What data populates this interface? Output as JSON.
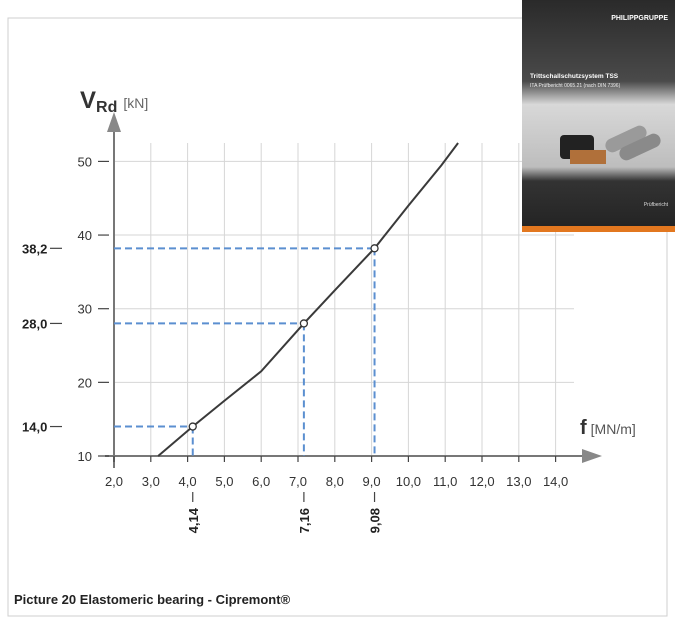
{
  "chart_data": {
    "type": "line",
    "y_label": "V",
    "y_label_sub": "Rd",
    "y_unit": "[kN]",
    "x_label": "f",
    "x_unit": "[MN/m]",
    "x": [
      3.2,
      4.14,
      5.0,
      6.0,
      7.16,
      8.0,
      9.08,
      10.0,
      10.9,
      11.35
    ],
    "series": [
      {
        "name": "V Rd",
        "color": "#3a3a3a",
        "values": [
          10,
          14.0,
          17.5,
          21.5,
          28.0,
          32.5,
          38.2,
          44,
          49.5,
          52.5
        ]
      }
    ],
    "xlim": [
      2.0,
      14.5
    ],
    "ylim": [
      10,
      52.5
    ],
    "xticks": [
      {
        "value": 2,
        "label": "2,0"
      },
      {
        "value": 3,
        "label": "3,0"
      },
      {
        "value": 4,
        "label": "4,0"
      },
      {
        "value": 5,
        "label": "5,0"
      },
      {
        "value": 6,
        "label": "6,0"
      },
      {
        "value": 7,
        "label": "7,0"
      },
      {
        "value": 8,
        "label": "8,0"
      },
      {
        "value": 9,
        "label": "9,0"
      },
      {
        "value": 10,
        "label": "10,0"
      },
      {
        "value": 11,
        "label": "11,0"
      },
      {
        "value": 12,
        "label": "12,0"
      },
      {
        "value": 13,
        "label": "13,0"
      },
      {
        "value": 14,
        "label": "14,0"
      }
    ],
    "yticks": [
      10,
      20,
      30,
      40,
      50
    ],
    "grid": true,
    "highlights": {
      "color": "#5b8fd0",
      "x": [
        4.14,
        7.16,
        9.08
      ],
      "x_labels": [
        "4,14",
        "7,16",
        "9,08"
      ],
      "y": [
        14.0,
        28.0,
        38.2
      ],
      "y_labels": [
        "14,0",
        "28,0",
        "38,2"
      ]
    }
  },
  "caption": "Picture 20  Elastomeric bearing - Cipremont®",
  "brochure": {
    "brand": "PHILIPPGRUPPE",
    "title": "Trittschallschutzsystem TSS",
    "subtitle": "ITA Prüfbericht 0065.21 (nach DIN 7396)",
    "footer": "Prüfbericht"
  }
}
